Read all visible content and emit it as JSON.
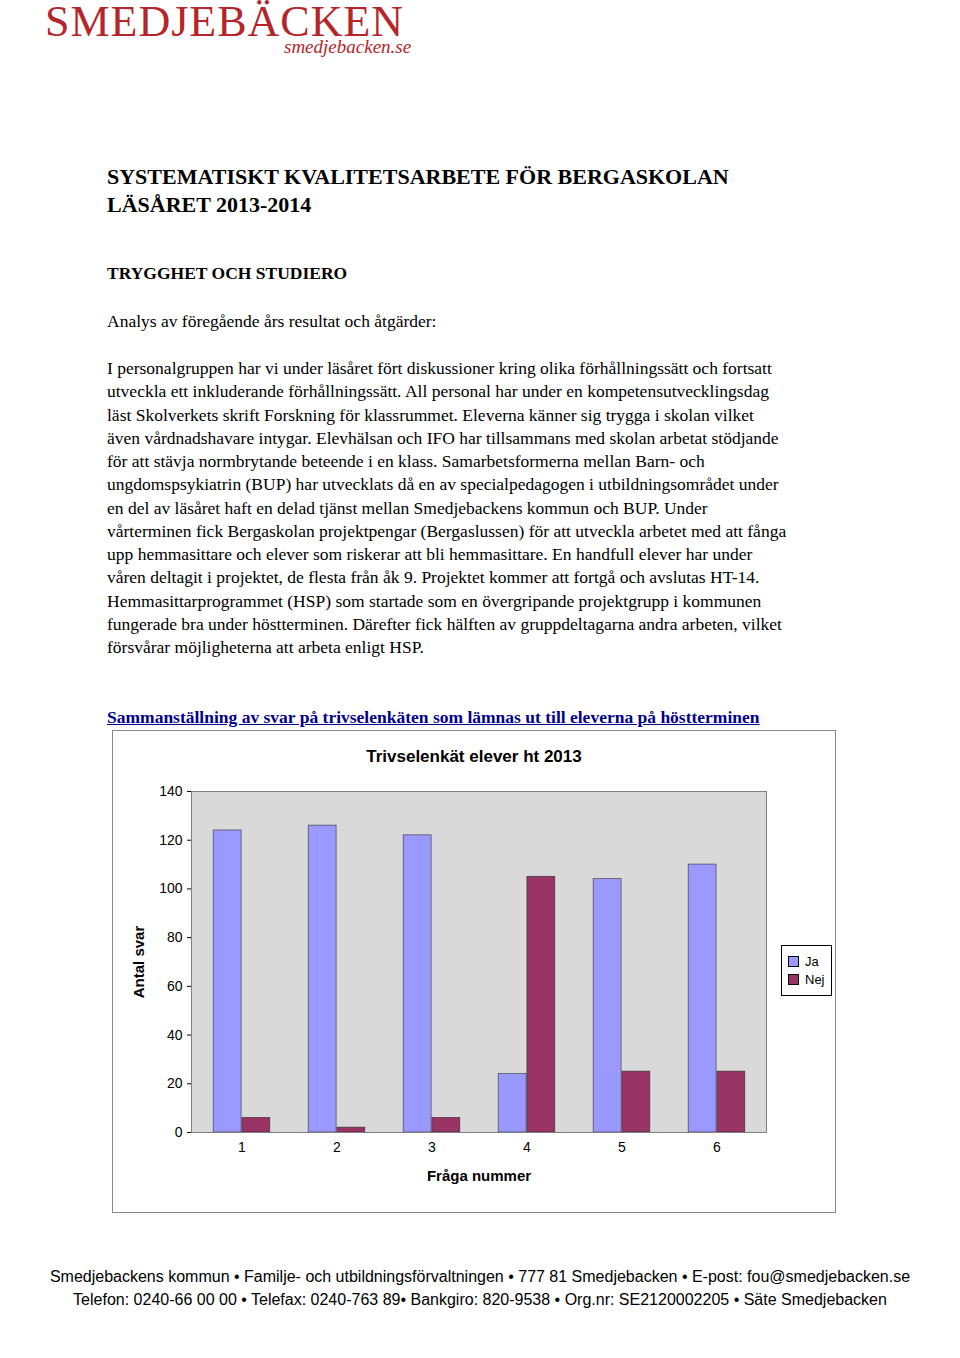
{
  "header": {
    "logo": "SMEDJEBÄCKEN",
    "website": "smedjebacken.se"
  },
  "title": [
    "SYSTEMATISKT KVALITETSARBETE FÖR BERGASKOLAN",
    "LÄSÅRET 2013-2014"
  ],
  "section": "TRYGGHET OCH STUDIERO",
  "subheading": "Analys av föregående års resultat och åtgärder:",
  "body_lines": [
    "I personalgruppen har vi under läsåret fört diskussioner kring olika förhållningssätt och fortsatt",
    "utveckla ett inkluderande förhållningssätt. All personal har under en kompetensutvecklingsdag",
    "läst Skolverkets skrift Forskning för klassrummet. Eleverna känner sig trygga i skolan vilket",
    "även vårdnadshavare intygar. Elevhälsan och IFO har tillsammans med skolan arbetat stödjande",
    "för att stävja normbrytande beteende i en klass. Samarbetsformerna mellan Barn- och",
    "ungdomspsykiatrin (BUP) har utvecklats då en av specialpedagogen i utbildningsområdet under",
    "en del av läsåret haft en delad tjänst mellan Smedjebackens kommun och BUP. Under",
    "vårterminen fick Bergaskolan projektpengar (Bergaslussen) för att utveckla arbetet med att fånga",
    "upp hemmasittare och elever som riskerar att bli hemmasittare. En handfull elever har under",
    "våren deltagit i projektet, de flesta från åk 9. Projektet kommer att fortgå och avslutas HT-14.",
    "Hemmasittarprogrammet (HSP) som startade som en övergripande projektgrupp i kommunen",
    "fungerade bra under höstterminen. Därefter fick hälften av gruppdeltagarna andra arbeten, vilket",
    "försvårar möjligheterna att arbeta enligt HSP."
  ],
  "chart_heading": "Sammanställning av svar på trivselenkäten som lämnas ut till eleverna på höstterminen",
  "chart_data": {
    "type": "bar",
    "title": "Trivselenkät elever ht 2013",
    "x_label": "Fråga nummer",
    "y_label": "Antal svar",
    "categories": [
      1,
      2,
      3,
      4,
      5,
      6
    ],
    "series": [
      {
        "name": "Ja",
        "color": "#9999ff",
        "values": [
          124,
          126,
          122,
          24,
          104,
          110
        ]
      },
      {
        "name": "Nej",
        "color": "#993366",
        "values": [
          6,
          2,
          6,
          105,
          25,
          25
        ]
      }
    ],
    "ylim": [
      0,
      140
    ],
    "yticks": [
      0,
      20,
      40,
      60,
      80,
      100,
      120,
      140
    ],
    "grid": false,
    "legend": "right"
  },
  "footer": [
    "Smedjebackens kommun • Familje- och utbildningsförvaltningen • 777 81 Smedjebacken • E-post: fou@smedjebacken.se",
    "Telefon: 0240-66 00 00 • Telefax: 0240-763 89• Bankgiro: 820-9538 • Org.nr: SE2120002205 • Säte Smedjebacken"
  ]
}
